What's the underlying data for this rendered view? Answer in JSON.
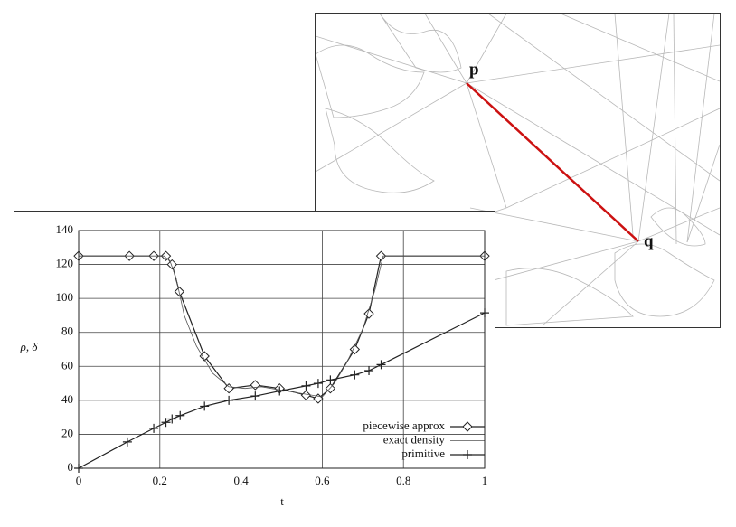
{
  "inset": {
    "labels": [
      "p",
      "q"
    ]
  },
  "chart_data": {
    "type": "line",
    "x_label": "t",
    "y_label": "ρ, δ",
    "xlim": [
      0,
      1
    ],
    "ylim": [
      0,
      140
    ],
    "xticks": [
      0,
      0.2,
      0.4,
      0.6,
      0.8,
      1
    ],
    "yticks": [
      0,
      20,
      40,
      60,
      80,
      100,
      120,
      140
    ],
    "grid": true,
    "legend": "lower right",
    "series": [
      {
        "name": "piecewise approx",
        "color": "#222222",
        "marker": "diamond",
        "x": [
          0,
          0.125,
          0.185,
          0.215,
          0.23,
          0.248,
          0.31,
          0.37,
          0.435,
          0.495,
          0.56,
          0.59,
          0.62,
          0.68,
          0.715,
          0.745,
          1
        ],
        "values": [
          125,
          125,
          125,
          125,
          120,
          104,
          66,
          47,
          49,
          47,
          43,
          41,
          47,
          70,
          91,
          125,
          125
        ]
      },
      {
        "name": "exact density",
        "color": "#555555",
        "marker": null,
        "x": [
          0,
          0.21,
          0.225,
          0.24,
          0.26,
          0.29,
          0.33,
          0.37,
          0.41,
          0.45,
          0.5,
          0.55,
          0.6,
          0.63,
          0.66,
          0.7,
          0.73,
          0.75,
          1
        ],
        "values": [
          125,
          125,
          122,
          112,
          90,
          72,
          56,
          48,
          47,
          48,
          46,
          44,
          42,
          50,
          62,
          82,
          105,
          125,
          125
        ]
      },
      {
        "name": "primitive",
        "color": "#222222",
        "marker": "plus",
        "x": [
          0,
          0.12,
          0.185,
          0.215,
          0.23,
          0.25,
          0.31,
          0.37,
          0.435,
          0.495,
          0.56,
          0.59,
          0.62,
          0.68,
          0.715,
          0.745,
          1
        ],
        "values": [
          0,
          15.5,
          23.5,
          27,
          29,
          31,
          36.5,
          40,
          42.5,
          45.5,
          48.5,
          50,
          52,
          55,
          57.5,
          61,
          91.5
        ]
      }
    ]
  }
}
